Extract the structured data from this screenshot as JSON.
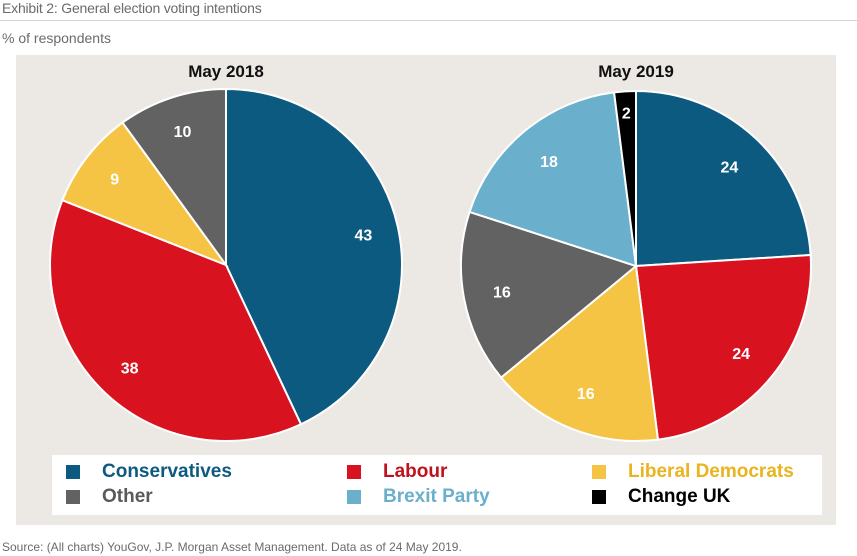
{
  "header": {
    "title": "Exhibit 2: General election voting intentions",
    "subtitle": "% of respondents"
  },
  "source": "Source: (All charts) YouGov, J.P. Morgan Asset Management. Data as of 24 May 2019.",
  "colors": {
    "Conservatives": "#0d5a80",
    "Labour": "#d9121f",
    "Liberal Democrats": "#f6c444",
    "Other": "#626262",
    "Brexit Party": "#6aafcb",
    "Change UK": "#000000"
  },
  "legend": [
    {
      "label": "Conservatives",
      "color": "#0d5a80",
      "text_color": "#0d5a80"
    },
    {
      "label": "Labour",
      "color": "#d9121f",
      "text_color": "#c0111c"
    },
    {
      "label": "Liberal Democrats",
      "color": "#f6c444",
      "text_color": "#eab41e"
    },
    {
      "label": "Other",
      "color": "#626262",
      "text_color": "#5a5a5a"
    },
    {
      "label": "Brexit Party",
      "color": "#6aafcb",
      "text_color": "#6aafcb"
    },
    {
      "label": "Change UK",
      "color": "#000000",
      "text_color": "#000000"
    }
  ],
  "chart_data": [
    {
      "type": "pie",
      "title": "May 2018",
      "slices": [
        {
          "label": "Conservatives",
          "value": 43
        },
        {
          "label": "Labour",
          "value": 38
        },
        {
          "label": "Liberal Democrats",
          "value": 9
        },
        {
          "label": "Other",
          "value": 10
        }
      ]
    },
    {
      "type": "pie",
      "title": "May 2019",
      "slices": [
        {
          "label": "Conservatives",
          "value": 24
        },
        {
          "label": "Labour",
          "value": 24
        },
        {
          "label": "Liberal Democrats",
          "value": 16
        },
        {
          "label": "Other",
          "value": 16
        },
        {
          "label": "Brexit Party",
          "value": 18
        },
        {
          "label": "Change UK",
          "value": 2
        }
      ]
    }
  ]
}
